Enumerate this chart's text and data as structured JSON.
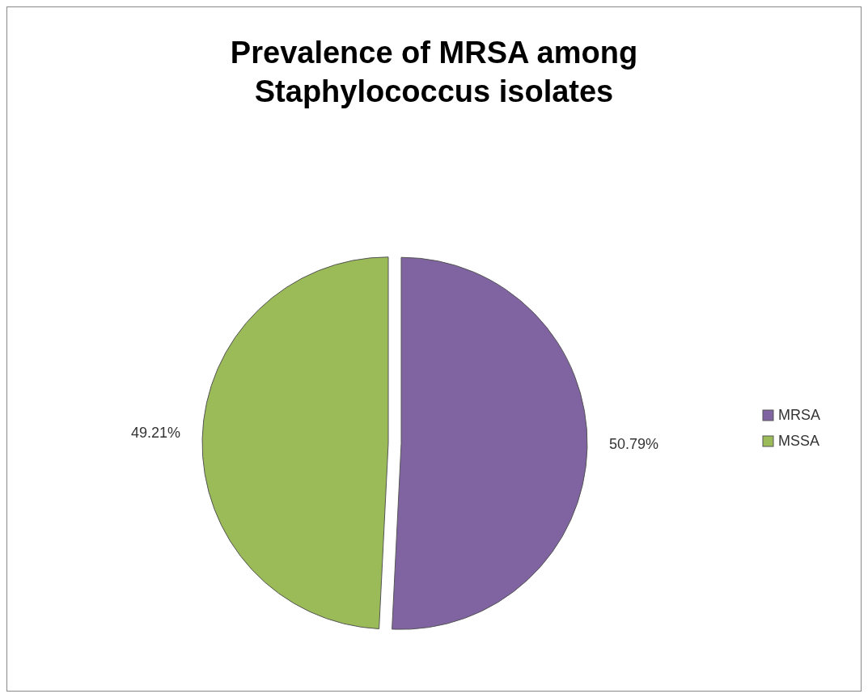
{
  "chart_data": {
    "type": "pie",
    "title": "Prevalence of MRSA among Staphylococcus isolates",
    "categories": [
      "MRSA",
      "MSSA"
    ],
    "values": [
      50.79,
      49.21
    ],
    "colors": [
      "#8064a2",
      "#9bbb59"
    ],
    "value_labels": [
      "50.79%",
      "49.21%"
    ],
    "legend": "right"
  }
}
